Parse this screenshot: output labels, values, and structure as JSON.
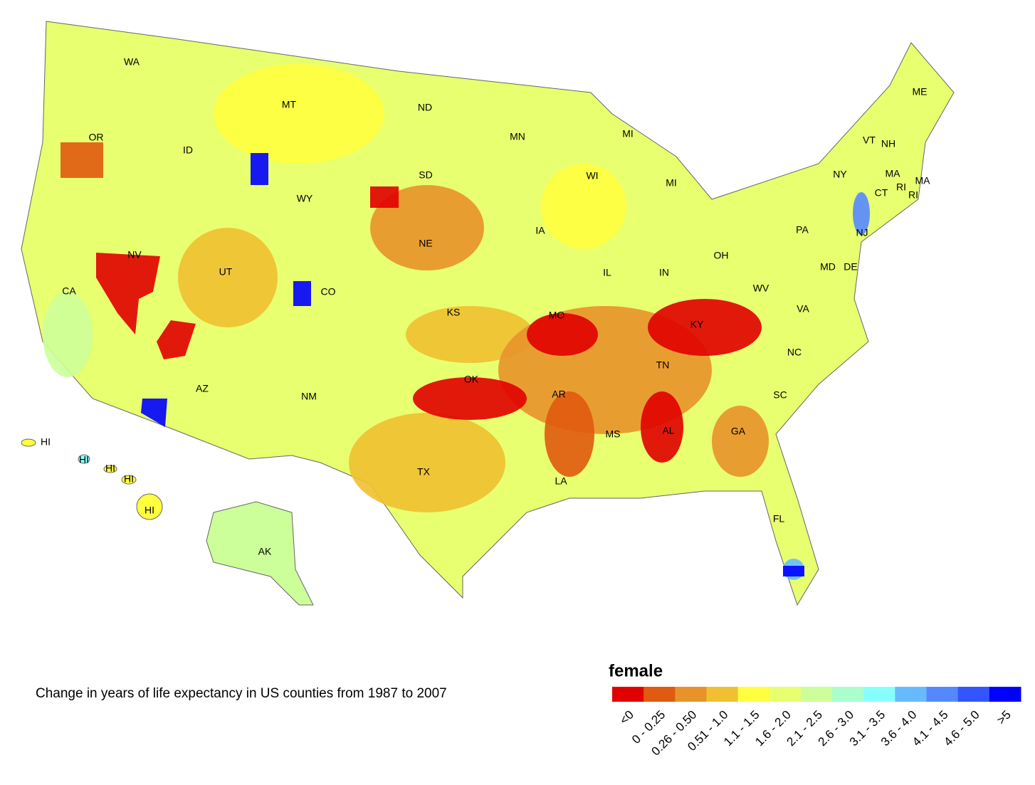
{
  "map": {
    "labels": [
      "WA",
      "MT",
      "ND",
      "ME",
      "OR",
      "ID",
      "MN",
      "MI",
      "VT",
      "NH",
      "WI",
      "SD",
      "NY",
      "MA",
      "MA",
      "MI",
      "WY",
      "CT",
      "RI",
      "RI",
      "IA",
      "PA",
      "NJ",
      "NE",
      "NV",
      "OH",
      "IL",
      "IN",
      "MD",
      "DE",
      "UT",
      "CA",
      "CO",
      "WV",
      "KS",
      "MO",
      "VA",
      "KY",
      "NC",
      "TN",
      "OK",
      "AR",
      "AZ",
      "NM",
      "SC",
      "MS",
      "AL",
      "GA",
      "TX",
      "LA",
      "FL",
      "HI",
      "HI",
      "HI",
      "HI",
      "HI",
      "AK"
    ]
  },
  "caption": "Change in years of life expectancy in US counties from 1987 to 2007",
  "legend": {
    "title": "female",
    "bins": [
      {
        "label": "<0",
        "color": "#e00000"
      },
      {
        "label": "0 - 0.25",
        "color": "#e05a10"
      },
      {
        "label": "0.26 - 0.50",
        "color": "#e8922a"
      },
      {
        "label": "0.51 - 1.0",
        "color": "#f0c030"
      },
      {
        "label": "1.1 - 1.5",
        "color": "#ffff40"
      },
      {
        "label": "1.6 - 2.0",
        "color": "#e8ff70"
      },
      {
        "label": "2.1 - 2.5",
        "color": "#ccff99"
      },
      {
        "label": "2.6 - 3.0",
        "color": "#aaffcc"
      },
      {
        "label": "3.1 - 3.5",
        "color": "#88ffff"
      },
      {
        "label": "3.6 - 4.0",
        "color": "#66bbff"
      },
      {
        "label": "4.1 - 4.5",
        "color": "#5588ff"
      },
      {
        "label": "4.6 - 5.0",
        "color": "#3355ff"
      },
      {
        "label": ">5",
        "color": "#0000ff"
      }
    ]
  }
}
